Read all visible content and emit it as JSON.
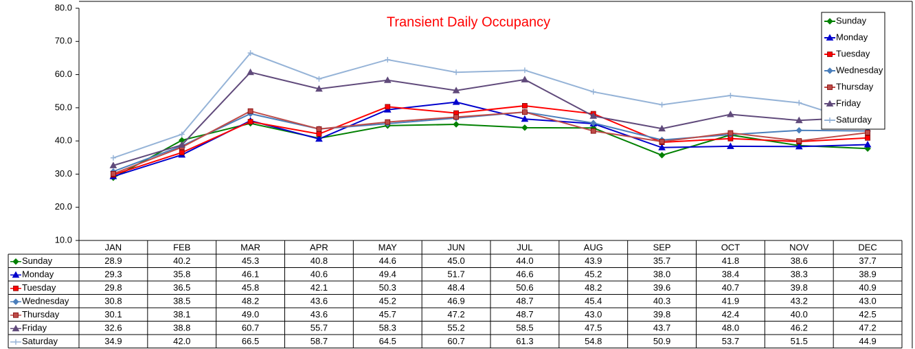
{
  "chart_data": {
    "type": "line",
    "title": "Transient Daily Occupancy",
    "categories": [
      "JAN",
      "FEB",
      "MAR",
      "APR",
      "MAY",
      "JUN",
      "JUL",
      "AUG",
      "SEP",
      "OCT",
      "NOV",
      "DEC"
    ],
    "ylim": [
      10,
      80
    ],
    "yticks": [
      {
        "value": 10,
        "label": "10.0"
      },
      {
        "value": 20,
        "label": "20.0"
      },
      {
        "value": 30,
        "label": "30.0"
      },
      {
        "value": 40,
        "label": "40.0"
      },
      {
        "value": 50,
        "label": "50.0"
      },
      {
        "value": 60,
        "label": "60.0"
      },
      {
        "value": 70,
        "label": "70.0"
      },
      {
        "value": 80,
        "label": "80.0"
      }
    ],
    "legend": "top-right",
    "series": [
      {
        "name": "Sunday",
        "color": "#008000",
        "marker": "diamond",
        "values": [
          28.9,
          40.2,
          45.3,
          40.8,
          44.6,
          45.0,
          44.0,
          43.9,
          35.7,
          41.8,
          38.6,
          37.7
        ],
        "value_labels": [
          "28.9",
          "40.2",
          "45.3",
          "40.8",
          "44.6",
          "45.0",
          "44.0",
          "43.9",
          "35.7",
          "41.8",
          "38.6",
          "37.7"
        ]
      },
      {
        "name": "Monday",
        "color": "#0000cc",
        "marker": "triangle",
        "values": [
          29.3,
          35.8,
          46.1,
          40.6,
          49.4,
          51.7,
          46.6,
          45.2,
          38.0,
          38.4,
          38.3,
          38.9
        ],
        "value_labels": [
          "29.3",
          "35.8",
          "46.1",
          "40.6",
          "49.4",
          "51.7",
          "46.6",
          "45.2",
          "38.0",
          "38.4",
          "38.3",
          "38.9"
        ]
      },
      {
        "name": "Tuesday",
        "color": "#ff0000",
        "marker": "square",
        "values": [
          29.8,
          36.5,
          45.8,
          42.1,
          50.3,
          48.4,
          50.6,
          48.2,
          39.6,
          40.7,
          39.8,
          40.9
        ],
        "value_labels": [
          "29.8",
          "36.5",
          "45.8",
          "42.1",
          "50.3",
          "48.4",
          "50.6",
          "48.2",
          "39.6",
          "40.7",
          "39.8",
          "40.9"
        ]
      },
      {
        "name": "Wednesday",
        "color": "#4a7ebb",
        "marker": "diamond",
        "values": [
          30.8,
          38.5,
          48.2,
          43.6,
          45.2,
          46.9,
          48.7,
          45.4,
          40.3,
          41.9,
          43.2,
          43.0
        ],
        "value_labels": [
          "30.8",
          "38.5",
          "48.2",
          "43.6",
          "45.2",
          "46.9",
          "48.7",
          "45.4",
          "40.3",
          "41.9",
          "43.2",
          "43.0"
        ]
      },
      {
        "name": "Thursday",
        "color": "#be4b48",
        "marker": "square",
        "values": [
          30.1,
          38.1,
          49.0,
          43.6,
          45.7,
          47.2,
          48.7,
          43.0,
          39.8,
          42.4,
          40.0,
          42.5
        ],
        "value_labels": [
          "30.1",
          "38.1",
          "49.0",
          "43.6",
          "45.7",
          "47.2",
          "48.7",
          "43.0",
          "39.8",
          "42.4",
          "40.0",
          "42.5"
        ]
      },
      {
        "name": "Friday",
        "color": "#604a7b",
        "marker": "triangle",
        "values": [
          32.6,
          38.8,
          60.7,
          55.7,
          58.3,
          55.2,
          58.5,
          47.5,
          43.7,
          48.0,
          46.2,
          47.2
        ],
        "value_labels": [
          "32.6",
          "38.8",
          "60.7",
          "55.7",
          "58.3",
          "55.2",
          "58.5",
          "47.5",
          "43.7",
          "48.0",
          "46.2",
          "47.2"
        ]
      },
      {
        "name": "Saturday",
        "color": "#95b3d7",
        "marker": "plus",
        "values": [
          34.9,
          42.0,
          66.5,
          58.7,
          64.5,
          60.7,
          61.3,
          54.8,
          50.9,
          53.7,
          51.5,
          44.9
        ],
        "value_labels": [
          "34.9",
          "42.0",
          "66.5",
          "58.7",
          "64.5",
          "60.7",
          "61.3",
          "54.8",
          "50.9",
          "53.7",
          "51.5",
          "44.9"
        ]
      }
    ]
  }
}
